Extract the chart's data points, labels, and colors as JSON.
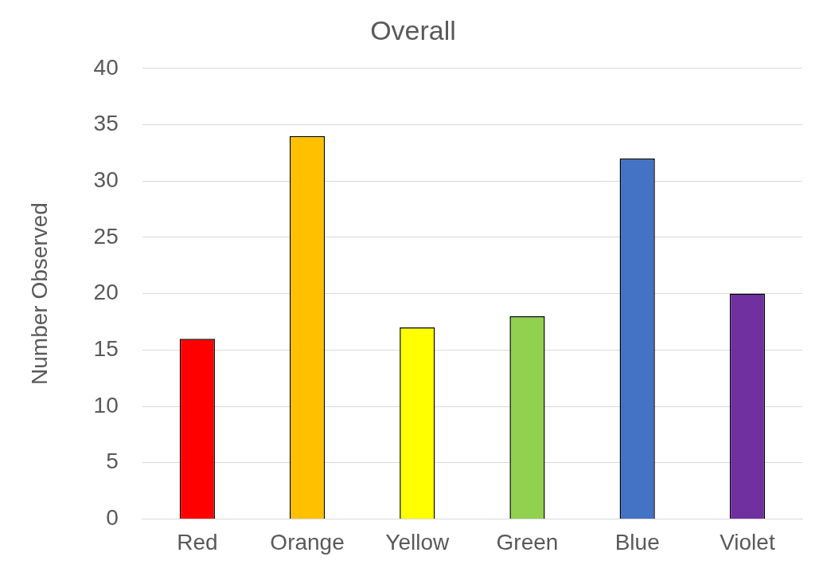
{
  "chart_data": {
    "type": "bar",
    "title": "Overall",
    "ylabel": "Number Observed",
    "categories": [
      "Red",
      "Orange",
      "Yellow",
      "Green",
      "Blue",
      "Violet"
    ],
    "values": [
      16,
      34,
      17,
      18,
      32,
      20
    ],
    "colors": [
      "#ff0000",
      "#ffc000",
      "#ffff00",
      "#92d050",
      "#4472c4",
      "#7030a0"
    ],
    "ylim": [
      0,
      40
    ],
    "yticks": [
      0,
      5,
      10,
      15,
      20,
      25,
      30,
      35,
      40
    ],
    "grid": "y",
    "legend": false
  }
}
